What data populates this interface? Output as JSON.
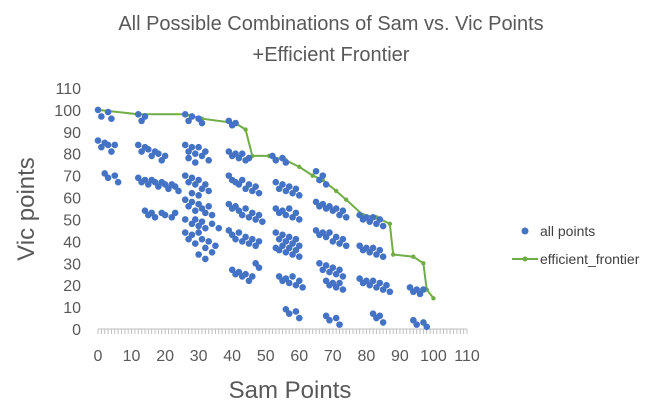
{
  "chart_data": {
    "type": "scatter",
    "title": "All Possible Combinations of Sam vs. Vic Points",
    "subtitle": "+Efficient Frontier",
    "xlabel": "Sam Points",
    "ylabel": "Vic points",
    "xlim": [
      0,
      110
    ],
    "ylim": [
      0,
      110
    ],
    "xticks": [
      0,
      10,
      20,
      30,
      40,
      50,
      60,
      70,
      80,
      90,
      100,
      110
    ],
    "yticks": [
      0,
      10,
      20,
      30,
      40,
      50,
      60,
      70,
      80,
      90,
      100,
      110
    ],
    "grid": false,
    "legend_position": "right",
    "colors": {
      "points": "#4472C4",
      "frontier": "#70AD47",
      "axis": "#BFBFBF",
      "text": "#595959"
    },
    "series": [
      {
        "name": "all points",
        "kind": "scatter",
        "points": [
          [
            0,
            100
          ],
          [
            1,
            97
          ],
          [
            3,
            99
          ],
          [
            4,
            96
          ],
          [
            0,
            86
          ],
          [
            1,
            83
          ],
          [
            2,
            85
          ],
          [
            3,
            84
          ],
          [
            4,
            81
          ],
          [
            5,
            84
          ],
          [
            2,
            71
          ],
          [
            3,
            69
          ],
          [
            5,
            70
          ],
          [
            6,
            67
          ],
          [
            12,
            98
          ],
          [
            13,
            95
          ],
          [
            14,
            97
          ],
          [
            12,
            84
          ],
          [
            13,
            81
          ],
          [
            14,
            83
          ],
          [
            15,
            82
          ],
          [
            16,
            79
          ],
          [
            17,
            81
          ],
          [
            18,
            80
          ],
          [
            19,
            77
          ],
          [
            20,
            79
          ],
          [
            12,
            69
          ],
          [
            13,
            67
          ],
          [
            14,
            68
          ],
          [
            15,
            66
          ],
          [
            16,
            68
          ],
          [
            17,
            67
          ],
          [
            18,
            65
          ],
          [
            19,
            67
          ],
          [
            20,
            66
          ],
          [
            21,
            64
          ],
          [
            22,
            66
          ],
          [
            23,
            65
          ],
          [
            24,
            63
          ],
          [
            14,
            54
          ],
          [
            15,
            52
          ],
          [
            16,
            53
          ],
          [
            17,
            51
          ],
          [
            19,
            53
          ],
          [
            20,
            52
          ],
          [
            22,
            51
          ],
          [
            23,
            53
          ],
          [
            26,
            98
          ],
          [
            27,
            95
          ],
          [
            28,
            97
          ],
          [
            30,
            96
          ],
          [
            31,
            94
          ],
          [
            26,
            84
          ],
          [
            27,
            81
          ],
          [
            28,
            83
          ],
          [
            29,
            80
          ],
          [
            30,
            83
          ],
          [
            31,
            79
          ],
          [
            32,
            81
          ],
          [
            33,
            77
          ],
          [
            27,
            78
          ],
          [
            29,
            76
          ],
          [
            26,
            70
          ],
          [
            27,
            67
          ],
          [
            28,
            69
          ],
          [
            29,
            66
          ],
          [
            30,
            68
          ],
          [
            31,
            64
          ],
          [
            32,
            66
          ],
          [
            33,
            63
          ],
          [
            28,
            62
          ],
          [
            30,
            61
          ],
          [
            26,
            59
          ],
          [
            27,
            56
          ],
          [
            28,
            58
          ],
          [
            29,
            54
          ],
          [
            30,
            57
          ],
          [
            31,
            55
          ],
          [
            32,
            53
          ],
          [
            33,
            56
          ],
          [
            34,
            52
          ],
          [
            29,
            50
          ],
          [
            31,
            49
          ],
          [
            26,
            44
          ],
          [
            27,
            41
          ],
          [
            28,
            43
          ],
          [
            29,
            39
          ],
          [
            30,
            44
          ],
          [
            31,
            41
          ],
          [
            32,
            37
          ],
          [
            33,
            40
          ],
          [
            34,
            35
          ],
          [
            35,
            38
          ],
          [
            30,
            34
          ],
          [
            32,
            32
          ],
          [
            26,
            50
          ],
          [
            28,
            48
          ],
          [
            30,
            47
          ],
          [
            32,
            46
          ],
          [
            34,
            48
          ],
          [
            36,
            46
          ],
          [
            39,
            95
          ],
          [
            40,
            93
          ],
          [
            41,
            94
          ],
          [
            39,
            81
          ],
          [
            40,
            79
          ],
          [
            41,
            80
          ],
          [
            42,
            78
          ],
          [
            43,
            80
          ],
          [
            44,
            77
          ],
          [
            45,
            78
          ],
          [
            39,
            70
          ],
          [
            40,
            68
          ],
          [
            41,
            67
          ],
          [
            42,
            66
          ],
          [
            43,
            68
          ],
          [
            44,
            64
          ],
          [
            45,
            66
          ],
          [
            46,
            63
          ],
          [
            47,
            65
          ],
          [
            48,
            62
          ],
          [
            39,
            57
          ],
          [
            40,
            55
          ],
          [
            41,
            56
          ],
          [
            42,
            54
          ],
          [
            43,
            52
          ],
          [
            44,
            55
          ],
          [
            45,
            51
          ],
          [
            46,
            53
          ],
          [
            47,
            50
          ],
          [
            48,
            52
          ],
          [
            49,
            49
          ],
          [
            39,
            45
          ],
          [
            40,
            43
          ],
          [
            41,
            41
          ],
          [
            42,
            44
          ],
          [
            43,
            40
          ],
          [
            44,
            42
          ],
          [
            45,
            39
          ],
          [
            46,
            41
          ],
          [
            47,
            38
          ],
          [
            48,
            40
          ],
          [
            40,
            27
          ],
          [
            41,
            25
          ],
          [
            42,
            26
          ],
          [
            43,
            24
          ],
          [
            44,
            25
          ],
          [
            45,
            22
          ],
          [
            46,
            24
          ],
          [
            47,
            30
          ],
          [
            48,
            28
          ],
          [
            52,
            79
          ],
          [
            53,
            77
          ],
          [
            55,
            78
          ],
          [
            56,
            76
          ],
          [
            53,
            67
          ],
          [
            54,
            64
          ],
          [
            55,
            66
          ],
          [
            56,
            63
          ],
          [
            57,
            65
          ],
          [
            58,
            62
          ],
          [
            59,
            64
          ],
          [
            60,
            61
          ],
          [
            53,
            55
          ],
          [
            54,
            53
          ],
          [
            55,
            54
          ],
          [
            56,
            52
          ],
          [
            57,
            55
          ],
          [
            58,
            51
          ],
          [
            59,
            53
          ],
          [
            60,
            50
          ],
          [
            53,
            44
          ],
          [
            54,
            41
          ],
          [
            55,
            43
          ],
          [
            56,
            40
          ],
          [
            57,
            42
          ],
          [
            58,
            39
          ],
          [
            59,
            41
          ],
          [
            60,
            38
          ],
          [
            53,
            37
          ],
          [
            54,
            36
          ],
          [
            55,
            38
          ],
          [
            56,
            35
          ],
          [
            57,
            37
          ],
          [
            58,
            34
          ],
          [
            59,
            36
          ],
          [
            60,
            33
          ],
          [
            54,
            24
          ],
          [
            55,
            22
          ],
          [
            56,
            23
          ],
          [
            57,
            21
          ],
          [
            58,
            24
          ],
          [
            59,
            20
          ],
          [
            60,
            22
          ],
          [
            61,
            19
          ],
          [
            56,
            9
          ],
          [
            57,
            7
          ],
          [
            59,
            8
          ],
          [
            60,
            5
          ],
          [
            65,
            72
          ],
          [
            66,
            68
          ],
          [
            67,
            70
          ],
          [
            68,
            66
          ],
          [
            65,
            58
          ],
          [
            66,
            56
          ],
          [
            67,
            57
          ],
          [
            68,
            55
          ],
          [
            69,
            56
          ],
          [
            70,
            54
          ],
          [
            71,
            55
          ],
          [
            72,
            52
          ],
          [
            73,
            54
          ],
          [
            74,
            51
          ],
          [
            65,
            45
          ],
          [
            66,
            43
          ],
          [
            67,
            44
          ],
          [
            68,
            42
          ],
          [
            69,
            44
          ],
          [
            70,
            40
          ],
          [
            71,
            42
          ],
          [
            72,
            39
          ],
          [
            73,
            41
          ],
          [
            74,
            38
          ],
          [
            66,
            30
          ],
          [
            67,
            27
          ],
          [
            68,
            29
          ],
          [
            69,
            26
          ],
          [
            70,
            28
          ],
          [
            71,
            25
          ],
          [
            72,
            27
          ],
          [
            73,
            24
          ],
          [
            68,
            22
          ],
          [
            69,
            20
          ],
          [
            70,
            21
          ],
          [
            71,
            19
          ],
          [
            72,
            21
          ],
          [
            73,
            18
          ],
          [
            68,
            6
          ],
          [
            69,
            4
          ],
          [
            71,
            5
          ],
          [
            72,
            2
          ],
          [
            78,
            52
          ],
          [
            79,
            50
          ],
          [
            80,
            51
          ],
          [
            81,
            49
          ],
          [
            82,
            51
          ],
          [
            83,
            48
          ],
          [
            84,
            50
          ],
          [
            85,
            47
          ],
          [
            78,
            38
          ],
          [
            79,
            36
          ],
          [
            80,
            37
          ],
          [
            81,
            35
          ],
          [
            82,
            37
          ],
          [
            83,
            34
          ],
          [
            84,
            36
          ],
          [
            85,
            33
          ],
          [
            78,
            23
          ],
          [
            79,
            21
          ],
          [
            80,
            22
          ],
          [
            81,
            20
          ],
          [
            82,
            22
          ],
          [
            83,
            19
          ],
          [
            84,
            21
          ],
          [
            85,
            18
          ],
          [
            86,
            20
          ],
          [
            87,
            17
          ],
          [
            82,
            7
          ],
          [
            83,
            5
          ],
          [
            84,
            6
          ],
          [
            85,
            3
          ],
          [
            93,
            19
          ],
          [
            94,
            17
          ],
          [
            95,
            18
          ],
          [
            96,
            16
          ],
          [
            97,
            18
          ],
          [
            94,
            4
          ],
          [
            95,
            2
          ],
          [
            97,
            3
          ],
          [
            98,
            1
          ]
        ]
      },
      {
        "name": "efficient_frontier",
        "kind": "line",
        "points": [
          [
            0,
            100
          ],
          [
            12,
            98
          ],
          [
            26,
            98
          ],
          [
            31,
            96
          ],
          [
            41,
            94
          ],
          [
            44,
            91
          ],
          [
            46,
            79
          ],
          [
            51,
            79
          ],
          [
            56,
            77
          ],
          [
            60,
            74
          ],
          [
            64,
            70
          ],
          [
            67,
            68
          ],
          [
            71,
            63
          ],
          [
            74,
            59
          ],
          [
            79,
            52
          ],
          [
            83,
            51
          ],
          [
            87,
            48
          ],
          [
            88,
            34
          ],
          [
            94,
            33
          ],
          [
            97,
            30
          ],
          [
            98,
            18
          ],
          [
            100,
            14
          ]
        ]
      }
    ]
  }
}
